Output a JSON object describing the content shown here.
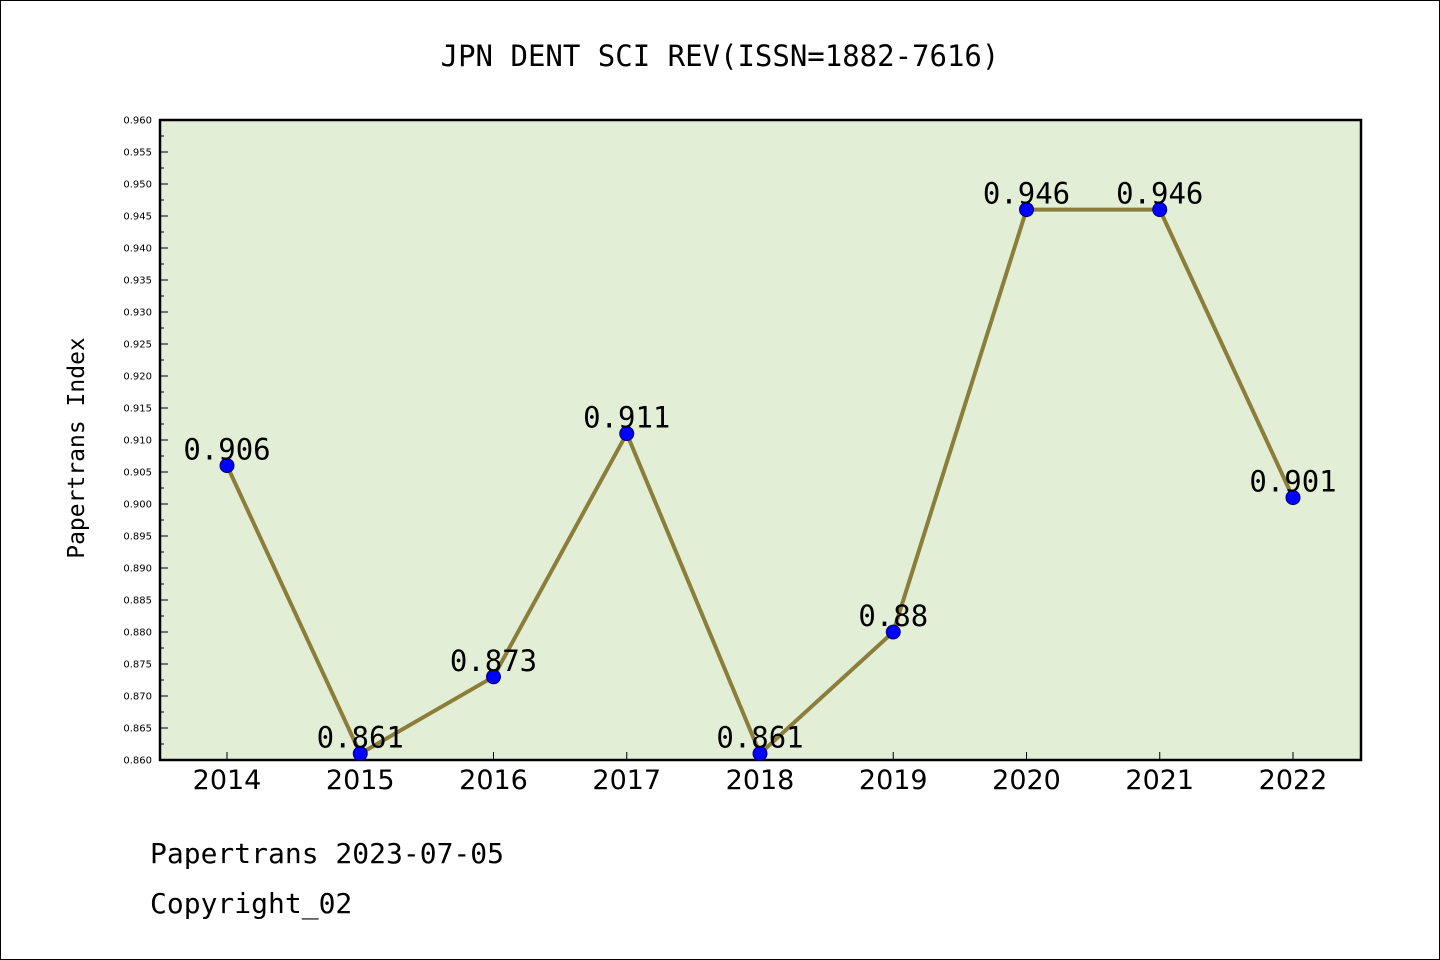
{
  "chart_data": {
    "type": "line",
    "title": "JPN DENT SCI REV(ISSN=1882-7616)",
    "ylabel": "Papertrans Index",
    "xlabel": "",
    "categories": [
      "2014",
      "2015",
      "2016",
      "2017",
      "2018",
      "2019",
      "2020",
      "2021",
      "2022"
    ],
    "values": [
      0.906,
      0.861,
      0.873,
      0.911,
      0.861,
      0.88,
      0.946,
      0.946,
      0.901
    ],
    "data_labels": [
      "0.906",
      "0.861",
      "0.873",
      "0.911",
      "0.861",
      "0.88",
      "0.946",
      "0.946",
      "0.901"
    ],
    "ylim": [
      0.86,
      0.96
    ],
    "ytick_labels": [
      "0.860",
      "0.865",
      "0.870",
      "0.875",
      "0.880",
      "0.885",
      "0.890",
      "0.895",
      "0.900",
      "0.905",
      "0.910",
      "0.915",
      "0.920",
      "0.925",
      "0.930",
      "0.935",
      "0.940",
      "0.945",
      "0.950",
      "0.955",
      "0.960"
    ],
    "grid": false,
    "legend": "none",
    "colors": {
      "plot_background": "#e2efd6",
      "line": "#8b7d3a",
      "marker": "#0000ff"
    }
  },
  "footer": {
    "line1": "Papertrans 2023-07-05",
    "line2": "Copyright_02"
  }
}
